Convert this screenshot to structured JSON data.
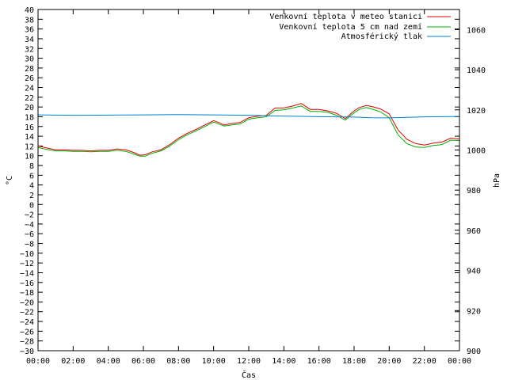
{
  "chart_data": {
    "type": "line",
    "title": "",
    "xlabel": "Čas",
    "ylabel": "°C",
    "y2label": "hPa",
    "x_ticks": [
      "00:00",
      "02:00",
      "04:00",
      "06:00",
      "08:00",
      "10:00",
      "12:00",
      "14:00",
      "16:00",
      "18:00",
      "20:00",
      "22:00",
      "00:00"
    ],
    "x_range_hours": [
      0,
      24
    ],
    "ylim": [
      -30,
      40
    ],
    "y_ticks": [
      40,
      38,
      36,
      34,
      32,
      30,
      28,
      26,
      24,
      22,
      20,
      18,
      16,
      14,
      12,
      10,
      8,
      6,
      4,
      2,
      0,
      -2,
      -4,
      -6,
      -8,
      -10,
      -12,
      -14,
      -16,
      -18,
      -20,
      -22,
      -24,
      -26,
      -28,
      -30
    ],
    "y2lim": [
      900,
      1070
    ],
    "y2_ticks": [
      1060,
      1040,
      1020,
      1000,
      980,
      960,
      940,
      920,
      900
    ],
    "grid": false,
    "legend_position": "top-right",
    "series": [
      {
        "name": "Venkovní teplota v meteo stanici",
        "color": "#e00000",
        "axis": "left",
        "x": [
          0,
          0.5,
          1,
          1.5,
          2,
          2.5,
          3,
          3.5,
          4,
          4.5,
          5,
          5.5,
          5.8,
          6.1,
          6.5,
          7,
          7.5,
          8,
          8.5,
          9,
          9.5,
          10,
          10.3,
          10.6,
          11,
          11.5,
          12,
          12.5,
          13,
          13.5,
          14,
          14.5,
          15,
          15.5,
          16,
          16.5,
          17,
          17.5,
          18,
          18.3,
          18.7,
          19,
          19.5,
          20,
          20.5,
          21,
          21.5,
          22,
          22.5,
          23,
          23.5,
          24
        ],
        "values": [
          12.0,
          11.6,
          11.2,
          11.2,
          11.1,
          11.1,
          11.0,
          11.1,
          11.1,
          11.4,
          11.2,
          10.6,
          10.1,
          10.2,
          10.8,
          11.2,
          12.3,
          13.6,
          14.6,
          15.4,
          16.3,
          17.2,
          16.8,
          16.3,
          16.6,
          16.8,
          17.8,
          18.1,
          18.3,
          19.8,
          19.8,
          20.2,
          20.7,
          19.5,
          19.5,
          19.2,
          18.7,
          17.6,
          19.2,
          19.9,
          20.3,
          20.1,
          19.6,
          18.6,
          15.3,
          13.4,
          12.5,
          12.2,
          12.6,
          12.8,
          13.6,
          13.4
        ]
      },
      {
        "name": "Venkovní teplota 5 cm nad zemí",
        "color": "#00b000",
        "axis": "left",
        "x": [
          0,
          0.5,
          1,
          1.5,
          2,
          2.5,
          3,
          3.5,
          4,
          4.5,
          5,
          5.5,
          5.8,
          6.1,
          6.5,
          7,
          7.5,
          8,
          8.5,
          9,
          9.5,
          10,
          10.3,
          10.6,
          11,
          11.5,
          12,
          12.5,
          13,
          13.5,
          14,
          14.5,
          15,
          15.5,
          16,
          16.5,
          17,
          17.5,
          18,
          18.3,
          18.7,
          19,
          19.5,
          20,
          20.5,
          21,
          21.5,
          22,
          22.5,
          23,
          23.5,
          24
        ],
        "values": [
          11.7,
          11.3,
          11.0,
          11.0,
          10.9,
          10.9,
          10.8,
          10.9,
          10.9,
          11.1,
          10.9,
          10.3,
          9.9,
          9.9,
          10.5,
          11.0,
          12.0,
          13.3,
          14.3,
          15.1,
          16.0,
          16.9,
          16.5,
          16.1,
          16.3,
          16.5,
          17.5,
          17.8,
          18.0,
          19.3,
          19.4,
          19.8,
          20.2,
          19.1,
          19.1,
          18.9,
          18.3,
          17.3,
          18.8,
          19.5,
          19.9,
          19.6,
          19.0,
          17.8,
          14.3,
          12.5,
          11.8,
          11.7,
          12.1,
          12.3,
          13.2,
          13.1
        ]
      },
      {
        "name": "Atmosférický tlak",
        "color": "#0080d0",
        "axis": "right",
        "x": [
          0,
          2,
          4,
          6,
          8,
          10,
          12,
          14,
          16,
          18,
          19,
          20,
          22,
          24
        ],
        "values": [
          1017.5,
          1017.3,
          1017.4,
          1017.5,
          1017.6,
          1017.5,
          1017.3,
          1016.9,
          1016.6,
          1016.4,
          1016.1,
          1016.0,
          1016.5,
          1016.7
        ]
      }
    ]
  }
}
